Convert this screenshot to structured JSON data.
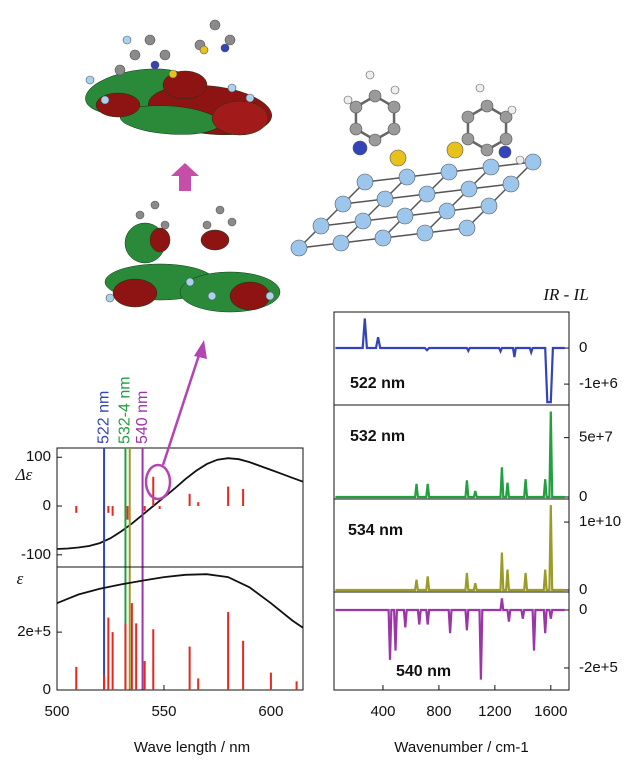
{
  "chart_data": [
    {
      "type": "line",
      "ylabel": "Δε",
      "xlim": [
        500,
        615
      ],
      "ylim": [
        -125,
        119
      ],
      "yticks": [
        -100,
        0,
        100
      ],
      "series": [
        {
          "style": "line",
          "color": "#111111",
          "x": [
            500,
            505,
            510,
            515,
            520,
            525,
            530,
            535,
            540,
            545,
            550,
            555,
            560,
            565,
            570,
            575,
            580,
            585,
            590,
            595,
            600,
            605,
            610,
            615
          ],
          "values": [
            -88,
            -87,
            -85,
            -82,
            -76,
            -66,
            -52,
            -36,
            -18,
            0,
            18,
            36,
            55,
            72,
            86,
            95,
            98,
            96,
            90,
            82,
            74,
            66,
            58,
            50
          ]
        },
        {
          "style": "stick",
          "color": "#e8281e",
          "x": [
            509,
            522,
            524,
            526,
            533,
            541,
            545,
            548,
            562,
            566,
            580,
            587
          ],
          "values": [
            -14,
            -8,
            -14,
            -20,
            -28,
            -10,
            60,
            -6,
            25,
            8,
            40,
            35
          ]
        }
      ],
      "markers": [
        {
          "x": 522,
          "label": "522 nm",
          "color": "#3344bb"
        },
        {
          "x": 532,
          "label": "532-4 nm",
          "color": "#22a040"
        },
        {
          "x": 534,
          "color": "#9b9b2a"
        },
        {
          "x": 540,
          "label": "540 nm",
          "color": "#9c35a8"
        }
      ]
    },
    {
      "type": "line",
      "ylabel": "ε",
      "xlabel": "Wave length / nm",
      "xlim": [
        500,
        615
      ],
      "ylim": [
        0,
        425000
      ],
      "xticks": [
        500,
        550,
        600
      ],
      "yticks": [
        0,
        {
          "value": 200000,
          "label": "2e+5"
        }
      ],
      "series": [
        {
          "style": "line",
          "color": "#111111",
          "x": [
            500,
            505,
            510,
            520,
            530,
            540,
            550,
            560,
            570,
            580,
            590,
            600,
            610,
            615
          ],
          "values": [
            300000,
            315000,
            330000,
            350000,
            365000,
            378000,
            390000,
            398000,
            400000,
            390000,
            355000,
            300000,
            240000,
            215000
          ]
        },
        {
          "style": "stick",
          "color": "#e8281e",
          "x": [
            509,
            522,
            524,
            526,
            532,
            535,
            537,
            541,
            545,
            562,
            566,
            580,
            587,
            600,
            612
          ],
          "values": [
            80000,
            50000,
            250000,
            200000,
            230000,
            300000,
            230000,
            100000,
            210000,
            150000,
            40000,
            270000,
            170000,
            60000,
            30000
          ]
        }
      ]
    },
    {
      "type": "line",
      "label": "522 nm",
      "ylabel": "IR - IL",
      "xlim": [
        50,
        1730
      ],
      "ylim": [
        -1580000,
        1000000
      ],
      "yticks": [
        0,
        {
          "value": -1000000,
          "label": "-1e+6"
        }
      ],
      "series": [
        {
          "style": "line",
          "color": "#3344bb",
          "x": [
            60,
            255,
            270,
            285,
            350,
            365,
            380,
            700,
            715,
            730,
            1000,
            1010,
            1020,
            1230,
            1240,
            1250,
            1330,
            1340,
            1350,
            1450,
            1460,
            1470,
            1560,
            1575,
            1585,
            1600,
            1615,
            1700
          ],
          "values": [
            0,
            0,
            820000,
            0,
            0,
            300000,
            0,
            0,
            -60000,
            0,
            0,
            -80000,
            0,
            0,
            -90000,
            0,
            0,
            -250000,
            0,
            0,
            -120000,
            0,
            0,
            -1500000,
            -1500000,
            -1500000,
            0,
            0
          ]
        }
      ]
    },
    {
      "type": "line",
      "label": "532 nm",
      "xlim": [
        50,
        1730
      ],
      "ylim": [
        -1700000,
        77500000
      ],
      "yticks": [
        0,
        {
          "value": 50000000,
          "label": "5e+7"
        }
      ],
      "series": [
        {
          "style": "line",
          "color": "#22a040",
          "x": [
            60,
            630,
            640,
            650,
            710,
            720,
            730,
            990,
            1000,
            1010,
            1050,
            1060,
            1070,
            1240,
            1250,
            1260,
            1280,
            1290,
            1300,
            1410,
            1420,
            1430,
            1550,
            1560,
            1570,
            1590,
            1600,
            1610,
            1700
          ],
          "values": [
            0,
            0,
            11000000,
            0,
            0,
            11000000,
            0,
            0,
            14000000,
            0,
            0,
            5000000,
            0,
            0,
            25000000,
            0,
            0,
            12000000,
            0,
            0,
            15000000,
            0,
            0,
            15000000,
            0,
            0,
            72000000,
            0,
            0
          ]
        }
      ]
    },
    {
      "type": "line",
      "label": "534 nm",
      "xlim": [
        50,
        1730
      ],
      "ylim": [
        -300000000,
        13400000000
      ],
      "yticks": [
        0,
        {
          "value": 10000000000,
          "label": "1e+10"
        }
      ],
      "series": [
        {
          "style": "line",
          "color": "#9b9b2a",
          "x": [
            60,
            630,
            640,
            650,
            710,
            720,
            730,
            990,
            1000,
            1010,
            1050,
            1060,
            1070,
            1240,
            1250,
            1260,
            1280,
            1290,
            1300,
            1410,
            1420,
            1430,
            1550,
            1560,
            1570,
            1590,
            1600,
            1610,
            1700
          ],
          "values": [
            0,
            0,
            1500000000,
            0,
            0,
            2000000000,
            0,
            0,
            2500000000,
            0,
            0,
            1000000000,
            0,
            0,
            5500000000,
            0,
            0,
            3000000000,
            0,
            0,
            2500000000,
            0,
            0,
            3000000000,
            0,
            0,
            12500000000,
            0,
            0
          ]
        }
      ]
    },
    {
      "type": "line",
      "label": "540 nm",
      "xlabel": "Wavenumber / cm-1",
      "xlim": [
        50,
        1730
      ],
      "ylim": [
        -276000,
        62000
      ],
      "xticks": [
        400,
        800,
        1200,
        1600
      ],
      "yticks": [
        0,
        {
          "value": -200000,
          "label": "-2e+5"
        }
      ],
      "series": [
        {
          "style": "line",
          "color": "#9c35a8",
          "x": [
            60,
            440,
            450,
            460,
            480,
            490,
            500,
            550,
            560,
            570,
            650,
            660,
            670,
            710,
            720,
            730,
            870,
            880,
            890,
            990,
            1000,
            1010,
            1090,
            1100,
            1110,
            1240,
            1250,
            1260,
            1290,
            1300,
            1310,
            1390,
            1400,
            1410,
            1470,
            1480,
            1490,
            1550,
            1560,
            1570,
            1590,
            1600,
            1610,
            1700
          ],
          "values": [
            0,
            0,
            -172000,
            0,
            0,
            -140000,
            0,
            0,
            -60000,
            0,
            0,
            -50000,
            0,
            0,
            -50000,
            0,
            0,
            -80000,
            0,
            0,
            -70000,
            0,
            0,
            -240000,
            0,
            0,
            40000,
            0,
            0,
            -40000,
            0,
            0,
            -30000,
            0,
            0,
            -140000,
            0,
            0,
            -80000,
            0,
            0,
            -30000,
            0,
            0
          ]
        }
      ]
    }
  ]
}
